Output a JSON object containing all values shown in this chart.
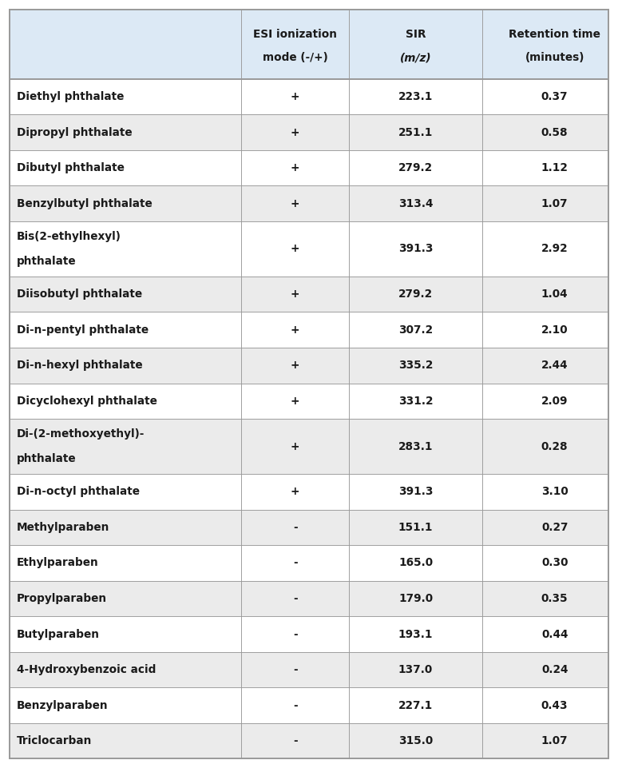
{
  "header_bg": "#dce9f5",
  "row_bg_white": "#ffffff",
  "row_bg_gray": "#ebebeb",
  "border_color": "#999999",
  "text_color": "#1a1a1a",
  "header_color": "#1a1a1a",
  "col_headers_line1": [
    "",
    "ESI ionization",
    "SIR",
    "Retention time"
  ],
  "col_headers_line2": [
    "",
    "mode (-/+)",
    "(m/z)",
    "(minutes)"
  ],
  "col_headers_italic_line2": [
    false,
    false,
    true,
    false
  ],
  "rows": [
    {
      "name": "Diethyl phthalate",
      "name2": "",
      "mode": "+",
      "sir": "223.1",
      "rt": "0.37"
    },
    {
      "name": "Dipropyl phthalate",
      "name2": "",
      "mode": "+",
      "sir": "251.1",
      "rt": "0.58"
    },
    {
      "name": "Dibutyl phthalate",
      "name2": "",
      "mode": "+",
      "sir": "279.2",
      "rt": "1.12"
    },
    {
      "name": "Benzylbutyl phthalate",
      "name2": "",
      "mode": "+",
      "sir": "313.4",
      "rt": "1.07"
    },
    {
      "name": "Bis(2-ethylhexyl)",
      "name2": "phthalate",
      "mode": "+",
      "sir": "391.3",
      "rt": "2.92"
    },
    {
      "name": "Diisobutyl phthalate",
      "name2": "",
      "mode": "+",
      "sir": "279.2",
      "rt": "1.04"
    },
    {
      "name": "Di-n-pentyl phthalate",
      "name2": "",
      "mode": "+",
      "sir": "307.2",
      "rt": "2.10"
    },
    {
      "name": "Di-n-hexyl phthalate",
      "name2": "",
      "mode": "+",
      "sir": "335.2",
      "rt": "2.44"
    },
    {
      "name": "Dicyclohexyl phthalate",
      "name2": "",
      "mode": "+",
      "sir": "331.2",
      "rt": "2.09"
    },
    {
      "name": "Di-(2-methoxyethyl)-",
      "name2": "phthalate",
      "mode": "+",
      "sir": "283.1",
      "rt": "0.28"
    },
    {
      "name": "Di-n-octyl phthalate",
      "name2": "",
      "mode": "+",
      "sir": "391.3",
      "rt": "3.10"
    },
    {
      "name": "Methylparaben",
      "name2": "",
      "mode": "-",
      "sir": "151.1",
      "rt": "0.27"
    },
    {
      "name": "Ethylparaben",
      "name2": "",
      "mode": "-",
      "sir": "165.0",
      "rt": "0.30"
    },
    {
      "name": "Propylparaben",
      "name2": "",
      "mode": "-",
      "sir": "179.0",
      "rt": "0.35"
    },
    {
      "name": "Butylparaben",
      "name2": "",
      "mode": "-",
      "sir": "193.1",
      "rt": "0.44"
    },
    {
      "name": "4-Hydroxybenzoic acid",
      "name2": "",
      "mode": "-",
      "sir": "137.0",
      "rt": "0.24"
    },
    {
      "name": "Benzylparaben",
      "name2": "",
      "mode": "-",
      "sir": "227.1",
      "rt": "0.43"
    },
    {
      "name": "Triclocarban",
      "name2": "",
      "mode": "-",
      "sir": "315.0",
      "rt": "1.07"
    }
  ],
  "figsize": [
    7.74,
    9.61
  ],
  "dpi": 100
}
